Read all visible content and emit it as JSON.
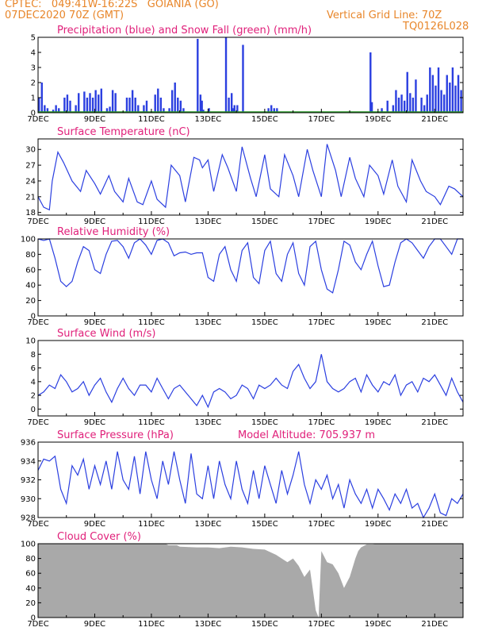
{
  "header": {
    "line1": "CPTEC:   049:41W-16:22S   GOIANIA (GO)",
    "line2": "07DEC2020 70Z (GMT)",
    "grid_line": "Vertical Grid Line: 70Z",
    "code": "TQ0126L028"
  },
  "colors": {
    "title": "#e0207a",
    "header": "#e8862a",
    "line": "#2b3fe0",
    "precip": "#2b3fe0",
    "snow": "#2a9a2a",
    "cloud": "#a9a9a9"
  },
  "x_ticks": [
    "7DEC",
    "9DEC",
    "11DEC",
    "13DEC",
    "15DEC",
    "17DEC",
    "19DEC",
    "21DEC"
  ],
  "chart_data": [
    {
      "id": "precip",
      "type": "bar",
      "title": "Precipitation (blue) and Snow Fall (green) (mm/h)",
      "x_days": [
        0.0,
        0.1,
        0.2,
        0.3,
        0.5,
        0.6,
        0.7,
        0.9,
        1.0,
        1.1,
        1.3,
        1.4,
        1.6,
        1.7,
        1.8,
        1.9,
        2.0,
        2.1,
        2.2,
        2.4,
        2.5,
        2.6,
        2.7,
        3.1,
        3.2,
        3.3,
        3.4,
        3.5,
        3.7,
        3.8,
        4.1,
        4.2,
        4.3,
        4.4,
        4.6,
        4.7,
        4.8,
        4.9,
        5.0,
        5.1,
        5.6,
        5.7,
        5.75,
        5.8,
        6.0,
        6.6,
        6.7,
        6.8,
        6.85,
        6.9,
        7.0,
        7.2,
        8.1,
        8.2,
        8.3,
        8.4,
        11.7,
        11.75,
        12.1,
        12.3,
        12.5,
        12.6,
        12.7,
        12.8,
        12.9,
        13.0,
        13.1,
        13.2,
        13.3,
        13.5,
        13.6,
        13.7,
        13.8,
        13.9,
        14.0,
        14.1,
        14.2,
        14.3,
        14.4,
        14.5,
        14.6,
        14.7,
        14.8,
        14.9
      ],
      "values": [
        1.0,
        2.0,
        0.5,
        0.3,
        0.2,
        0.5,
        0.3,
        1.0,
        1.2,
        0.8,
        0.5,
        1.3,
        1.4,
        1.0,
        1.3,
        1.0,
        1.5,
        1.2,
        1.6,
        0.3,
        0.4,
        1.5,
        1.3,
        1.0,
        1.0,
        1.5,
        1.0,
        0.5,
        0.5,
        0.8,
        1.2,
        1.6,
        1.0,
        0.3,
        0.3,
        1.5,
        2.0,
        1.0,
        0.8,
        0.3,
        4.9,
        1.2,
        0.8,
        0.2,
        0.3,
        5.0,
        1.0,
        1.3,
        0.3,
        0.5,
        0.5,
        4.5,
        0.3,
        0.5,
        0.3,
        0.3,
        4.0,
        0.7,
        0.3,
        0.8,
        0.5,
        1.5,
        1.0,
        1.2,
        0.8,
        2.7,
        1.3,
        1.0,
        2.2,
        1.0,
        0.5,
        1.2,
        3.0,
        2.5,
        1.8,
        3.0,
        1.5,
        1.2,
        2.5,
        2.0,
        3.0,
        1.8,
        2.5,
        1.5
      ],
      "yticks": [
        0,
        1,
        2,
        3,
        4,
        5
      ],
      "ylim": [
        0,
        5
      ]
    },
    {
      "id": "temp",
      "type": "line",
      "title": "Surface Temperature (nC)",
      "x": [
        0.0,
        0.2,
        0.4,
        0.5,
        0.7,
        0.9,
        1.2,
        1.5,
        1.7,
        2.0,
        2.2,
        2.5,
        2.7,
        3.0,
        3.2,
        3.5,
        3.7,
        4.0,
        4.2,
        4.5,
        4.7,
        5.0,
        5.2,
        5.5,
        5.7,
        5.8,
        6.0,
        6.2,
        6.5,
        6.7,
        7.0,
        7.2,
        7.5,
        7.7,
        8.0,
        8.2,
        8.5,
        8.7,
        9.0,
        9.2,
        9.5,
        9.7,
        10.0,
        10.2,
        10.5,
        10.7,
        11.0,
        11.2,
        11.5,
        11.7,
        12.0,
        12.2,
        12.5,
        12.7,
        13.0,
        13.2,
        13.5,
        13.7,
        14.0,
        14.2,
        14.5,
        14.7,
        15.0
      ],
      "values": [
        21.0,
        19.0,
        18.5,
        24.0,
        29.5,
        27.5,
        24.0,
        22.0,
        26.0,
        23.5,
        21.5,
        25.0,
        22.0,
        20.0,
        24.5,
        20.0,
        19.5,
        24.0,
        20.5,
        19.0,
        27.0,
        25.0,
        20.0,
        28.5,
        28.0,
        26.5,
        28.0,
        22.0,
        29.0,
        26.5,
        22.0,
        30.5,
        24.5,
        21.0,
        29.0,
        22.5,
        21.0,
        29.0,
        25.0,
        21.0,
        30.0,
        26.0,
        21.0,
        31.0,
        26.0,
        21.0,
        28.5,
        24.5,
        21.0,
        27.0,
        25.0,
        21.5,
        28.0,
        23.0,
        20.0,
        28.0,
        24.0,
        22.0,
        21.0,
        19.5,
        23.0,
        22.5,
        21.0
      ],
      "yticks": [
        18,
        21,
        24,
        27,
        30
      ],
      "ylim": [
        17.5,
        32
      ]
    },
    {
      "id": "rh",
      "type": "line",
      "title": "Relative Humidity (%)",
      "x": [
        0.0,
        0.2,
        0.4,
        0.6,
        0.8,
        1.0,
        1.2,
        1.4,
        1.6,
        1.8,
        2.0,
        2.2,
        2.4,
        2.6,
        2.8,
        3.0,
        3.2,
        3.4,
        3.6,
        3.8,
        4.0,
        4.2,
        4.4,
        4.6,
        4.8,
        5.0,
        5.2,
        5.4,
        5.6,
        5.8,
        6.0,
        6.2,
        6.4,
        6.6,
        6.8,
        7.0,
        7.2,
        7.4,
        7.6,
        7.8,
        8.0,
        8.2,
        8.4,
        8.6,
        8.8,
        9.0,
        9.2,
        9.4,
        9.6,
        9.8,
        10.0,
        10.2,
        10.4,
        10.6,
        10.8,
        11.0,
        11.2,
        11.4,
        11.6,
        11.8,
        12.0,
        12.2,
        12.4,
        12.6,
        12.8,
        13.0,
        13.2,
        13.4,
        13.6,
        13.8,
        14.0,
        14.2,
        14.4,
        14.6,
        14.8,
        15.0
      ],
      "values": [
        100,
        98,
        100,
        75,
        45,
        38,
        45,
        70,
        90,
        85,
        60,
        55,
        80,
        97,
        98,
        90,
        75,
        95,
        100,
        92,
        80,
        98,
        100,
        95,
        78,
        82,
        83,
        80,
        82,
        82,
        50,
        45,
        80,
        90,
        60,
        45,
        85,
        95,
        50,
        42,
        85,
        97,
        55,
        45,
        80,
        95,
        55,
        40,
        90,
        97,
        60,
        35,
        30,
        60,
        97,
        92,
        70,
        60,
        80,
        97,
        65,
        38,
        40,
        70,
        95,
        100,
        95,
        85,
        75,
        90,
        100,
        100,
        90,
        80,
        100,
        100
      ],
      "yticks": [
        0,
        20,
        40,
        60,
        80,
        100
      ],
      "ylim": [
        0,
        100
      ]
    },
    {
      "id": "wind",
      "type": "line",
      "title": "Surface Wind (m/s)",
      "x": [
        0.0,
        0.2,
        0.4,
        0.6,
        0.8,
        1.0,
        1.2,
        1.4,
        1.6,
        1.8,
        2.0,
        2.2,
        2.4,
        2.6,
        2.8,
        3.0,
        3.2,
        3.4,
        3.6,
        3.8,
        4.0,
        4.2,
        4.4,
        4.6,
        4.8,
        5.0,
        5.2,
        5.4,
        5.6,
        5.8,
        6.0,
        6.2,
        6.4,
        6.6,
        6.8,
        7.0,
        7.2,
        7.4,
        7.6,
        7.8,
        8.0,
        8.2,
        8.4,
        8.6,
        8.8,
        9.0,
        9.2,
        9.4,
        9.6,
        9.8,
        10.0,
        10.2,
        10.4,
        10.6,
        10.8,
        11.0,
        11.2,
        11.4,
        11.6,
        11.8,
        12.0,
        12.2,
        12.4,
        12.6,
        12.8,
        13.0,
        13.2,
        13.4,
        13.6,
        13.8,
        14.0,
        14.2,
        14.4,
        14.6,
        14.8,
        15.0
      ],
      "values": [
        2.0,
        2.5,
        3.5,
        3.0,
        5.0,
        4.0,
        2.5,
        3.0,
        4.0,
        2.0,
        3.5,
        4.5,
        2.5,
        1.0,
        3.0,
        4.5,
        3.0,
        2.0,
        3.5,
        3.5,
        2.5,
        4.5,
        3.0,
        1.5,
        3.0,
        3.5,
        2.5,
        1.5,
        0.5,
        2.0,
        0.3,
        2.5,
        3.0,
        2.5,
        1.5,
        2.0,
        3.5,
        3.0,
        1.5,
        3.5,
        3.0,
        3.5,
        4.5,
        3.5,
        3.0,
        5.5,
        6.5,
        4.5,
        3.0,
        4.0,
        8.0,
        4.0,
        3.0,
        2.5,
        3.0,
        4.0,
        4.5,
        2.5,
        5.0,
        3.5,
        2.5,
        4.0,
        3.5,
        5.0,
        2.0,
        3.5,
        4.0,
        2.5,
        4.5,
        4.0,
        5.0,
        3.5,
        2.0,
        4.5,
        2.5,
        1.0
      ],
      "yticks": [
        0,
        2,
        4,
        6,
        8,
        10
      ],
      "ylim": [
        -1,
        10
      ]
    },
    {
      "id": "pressure",
      "type": "line",
      "title": "Surface Pressure (hPa)",
      "note": "Model Altitude: 705.937 m",
      "x": [
        0.0,
        0.2,
        0.4,
        0.6,
        0.8,
        1.0,
        1.2,
        1.4,
        1.6,
        1.8,
        2.0,
        2.2,
        2.4,
        2.6,
        2.8,
        3.0,
        3.2,
        3.4,
        3.6,
        3.8,
        4.0,
        4.2,
        4.4,
        4.6,
        4.8,
        5.0,
        5.2,
        5.4,
        5.6,
        5.8,
        6.0,
        6.2,
        6.4,
        6.6,
        6.8,
        7.0,
        7.2,
        7.4,
        7.6,
        7.8,
        8.0,
        8.2,
        8.4,
        8.6,
        8.8,
        9.0,
        9.2,
        9.4,
        9.6,
        9.8,
        10.0,
        10.2,
        10.4,
        10.6,
        10.8,
        11.0,
        11.2,
        11.4,
        11.6,
        11.8,
        12.0,
        12.2,
        12.4,
        12.6,
        12.8,
        13.0,
        13.2,
        13.4,
        13.6,
        13.8,
        14.0,
        14.2,
        14.4,
        14.6,
        14.8,
        15.0
      ],
      "values": [
        933.0,
        934.2,
        934.0,
        934.5,
        931.0,
        929.5,
        933.5,
        932.5,
        934.2,
        931.0,
        933.5,
        931.5,
        934.0,
        931.0,
        935.0,
        932.0,
        931.0,
        934.5,
        930.5,
        935.0,
        932.0,
        930.0,
        934.0,
        931.5,
        935.0,
        932.0,
        929.5,
        934.8,
        930.5,
        930.0,
        933.5,
        930.0,
        934.0,
        931.5,
        930.0,
        934.0,
        931.0,
        929.5,
        933.0,
        930.0,
        933.5,
        931.5,
        929.5,
        933.0,
        930.5,
        932.5,
        935.0,
        931.5,
        929.5,
        932.0,
        931.0,
        932.5,
        930.0,
        931.5,
        929.0,
        932.0,
        930.5,
        929.5,
        931.0,
        929.0,
        931.0,
        930.0,
        928.8,
        930.5,
        929.5,
        931.0,
        929.0,
        929.5,
        928.0,
        929.0,
        930.5,
        928.5,
        928.2,
        930.0,
        929.5,
        930.5
      ],
      "yticks": [
        928,
        930,
        932,
        934,
        936
      ],
      "ylim": [
        928,
        936
      ]
    },
    {
      "id": "cloud",
      "type": "area",
      "title": "Cloud Cover (%)",
      "x": [
        0.0,
        4.4,
        4.5,
        4.6,
        4.9,
        5.0,
        5.6,
        6.0,
        6.4,
        6.8,
        7.2,
        7.6,
        8.0,
        8.4,
        8.6,
        8.8,
        9.0,
        9.2,
        9.4,
        9.6,
        9.8,
        9.9,
        10.0,
        10.2,
        10.4,
        10.6,
        10.8,
        11.0,
        11.2,
        11.3,
        11.4,
        11.6,
        11.8,
        12.0,
        12.2,
        12.4,
        12.6,
        12.8,
        13.0,
        13.2,
        13.4,
        13.6,
        13.8,
        14.0,
        14.2,
        14.4,
        14.6,
        14.8,
        15.0
      ],
      "values": [
        100,
        100,
        100,
        98,
        98,
        96,
        95,
        95,
        94,
        96,
        95,
        93,
        92,
        85,
        80,
        75,
        80,
        70,
        55,
        65,
        10,
        0,
        90,
        75,
        72,
        60,
        40,
        55,
        80,
        90,
        95,
        99,
        99,
        100,
        100,
        100,
        100,
        100,
        100,
        100,
        100,
        100,
        100,
        100,
        100,
        100,
        100,
        100,
        100
      ],
      "yticks": [
        0,
        20,
        40,
        60,
        80,
        100
      ],
      "ylim": [
        0,
        100
      ]
    }
  ]
}
